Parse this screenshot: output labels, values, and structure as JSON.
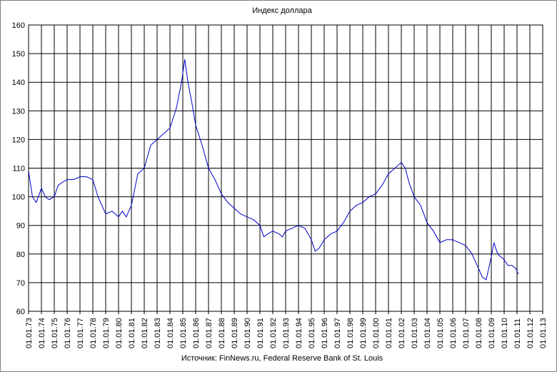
{
  "chart_data": {
    "type": "line",
    "title": "Индекс доллара",
    "source": "Источник: FinNews.ru, Federal Reserve Bank of St. Louis",
    "xlabel": "",
    "ylabel": "",
    "ylim": [
      60,
      160
    ],
    "y_ticks": [
      "60",
      "70",
      "80",
      "90",
      "100",
      "110",
      "120",
      "130",
      "140",
      "150",
      "160"
    ],
    "x_ticks": [
      "01.01.73",
      "01.01.74",
      "01.01.75",
      "01.01.76",
      "01.01.77",
      "01.01.78",
      "01.01.79",
      "01.01.80",
      "01.01.81",
      "01.01.82",
      "01.01.83",
      "01.01.84",
      "01.01.85",
      "01.01.86",
      "01.01.87",
      "01.01.88",
      "01.01.89",
      "01.01.90",
      "01.01.91",
      "01.01.92",
      "01.01.93",
      "01.01.94",
      "01.01.95",
      "01.01.96",
      "01.01.97",
      "01.01.98",
      "01.01.99",
      "01.01.00",
      "01.01.01",
      "01.01.02",
      "01.01.03",
      "01.01.04",
      "01.01.05",
      "01.01.06",
      "01.01.07",
      "01.01.08",
      "01.01.09",
      "01.01.10",
      "01.01.11",
      "01.01.12",
      "01.01.13"
    ],
    "grid": true,
    "line_color": "#0000cc",
    "x": [
      1973.0,
      1973.3,
      1973.6,
      1974.0,
      1974.3,
      1974.6,
      1975.0,
      1975.3,
      1975.6,
      1976.0,
      1976.5,
      1977.0,
      1977.5,
      1978.0,
      1978.4,
      1978.8,
      1979.0,
      1979.5,
      1980.0,
      1980.3,
      1980.6,
      1981.0,
      1981.5,
      1982.0,
      1982.5,
      1983.0,
      1983.5,
      1984.0,
      1984.5,
      1984.9,
      1985.15,
      1985.4,
      1985.7,
      1986.0,
      1986.5,
      1987.0,
      1987.5,
      1988.0,
      1988.5,
      1989.0,
      1989.5,
      1990.0,
      1990.5,
      1991.0,
      1991.3,
      1991.6,
      1992.0,
      1992.5,
      1992.75,
      1993.0,
      1993.5,
      1994.0,
      1994.5,
      1995.0,
      1995.3,
      1995.6,
      1996.0,
      1996.5,
      1997.0,
      1997.5,
      1998.0,
      1998.5,
      1999.0,
      1999.5,
      2000.0,
      2000.5,
      2001.0,
      2001.5,
      2002.0,
      2002.3,
      2002.6,
      2003.0,
      2003.5,
      2004.0,
      2004.5,
      2005.0,
      2005.5,
      2006.0,
      2006.5,
      2007.0,
      2007.5,
      2008.0,
      2008.3,
      2008.6,
      2009.0,
      2009.2,
      2009.5,
      2010.0,
      2010.3,
      2010.6,
      2010.9,
      2011.1
    ],
    "values": [
      109,
      100,
      98,
      103,
      100,
      99,
      100,
      104,
      105,
      106,
      106,
      107,
      107,
      106,
      100,
      96,
      94,
      95,
      93,
      95,
      93,
      97,
      108,
      110,
      118,
      120,
      122,
      124,
      131,
      140,
      148,
      140,
      133,
      125,
      118,
      110,
      106,
      101,
      98,
      96,
      94,
      93,
      92,
      90,
      86,
      87,
      88,
      87,
      86,
      88,
      89,
      90,
      89,
      85,
      81,
      82,
      85,
      87,
      88,
      91,
      95,
      97,
      98,
      100,
      101,
      104,
      108,
      110,
      112,
      110,
      105,
      100,
      97,
      91,
      88,
      84,
      85,
      85,
      84,
      83,
      80,
      75,
      72,
      71,
      79,
      84,
      80,
      78,
      76,
      76,
      75,
      73
    ]
  }
}
